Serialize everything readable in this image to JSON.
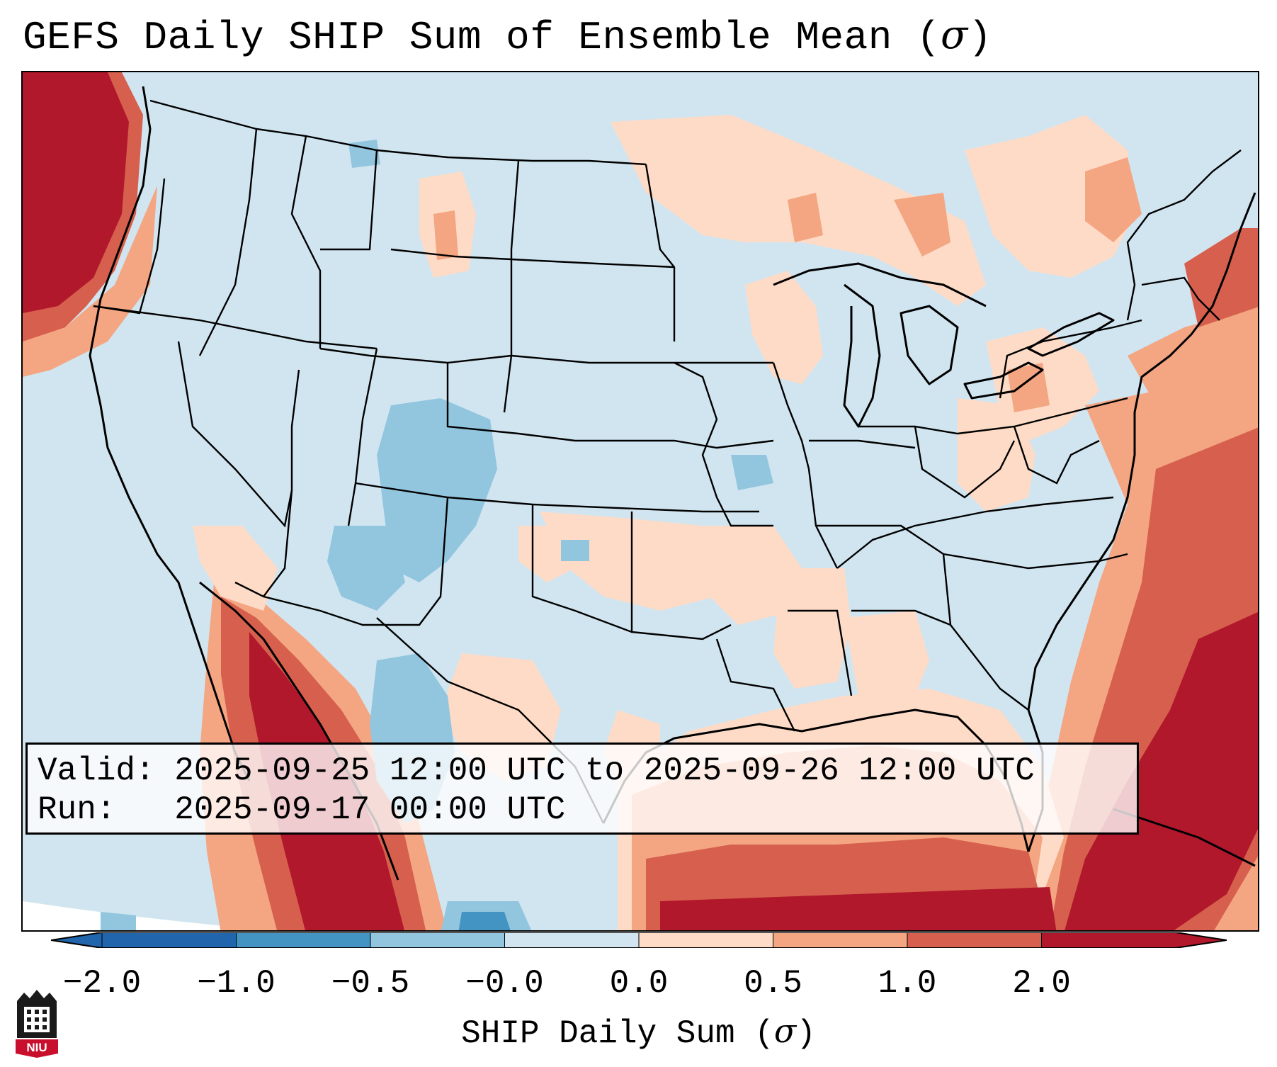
{
  "title": "GEFS Daily SHIP Sum of Ensemble Mean (",
  "title_sigma": "σ",
  "title_close": ")",
  "info": {
    "valid_line": "Valid: 2025-09-25 12:00 UTC to 2025-09-26 12:00 UTC",
    "run_line": "Run:   2025-09-17 00:00 UTC"
  },
  "colorbar": {
    "label_prefix": "SHIP Daily Sum (",
    "label_sigma": "σ",
    "label_suffix": ")",
    "ticks": [
      "−2.0",
      "−1.0",
      "−0.5",
      "−0.0",
      "0.0",
      "0.5",
      "1.0",
      "2.0"
    ],
    "colors": [
      "#2166ac",
      "#4393c3",
      "#92c5de",
      "#d1e5f0",
      "#fddbc7",
      "#f4a582",
      "#d6604d",
      "#b2182b"
    ]
  },
  "logo": {
    "text": "NIU"
  },
  "map": {
    "ocean_color": "#d1e5f0",
    "states": [
      "Washington",
      "Oregon",
      "California",
      "Nevada",
      "Idaho",
      "Montana",
      "Wyoming",
      "Utah",
      "Arizona",
      "Colorado",
      "New Mexico",
      "North Dakota",
      "South Dakota",
      "Nebraska",
      "Kansas",
      "Oklahoma",
      "Texas",
      "Minnesota",
      "Iowa",
      "Missouri",
      "Arkansas",
      "Louisiana",
      "Wisconsin",
      "Illinois",
      "Mississippi",
      "Michigan",
      "Indiana",
      "Kentucky",
      "Tennessee",
      "Alabama",
      "Ohio",
      "West Virginia",
      "Georgia",
      "Florida",
      "South Carolina",
      "North Carolina",
      "Virginia",
      "Maryland",
      "Delaware",
      "Pennsylvania",
      "New Jersey",
      "New York",
      "Connecticut",
      "Rhode Island",
      "Massachusetts",
      "Vermont",
      "New Hampshire",
      "Maine"
    ]
  }
}
